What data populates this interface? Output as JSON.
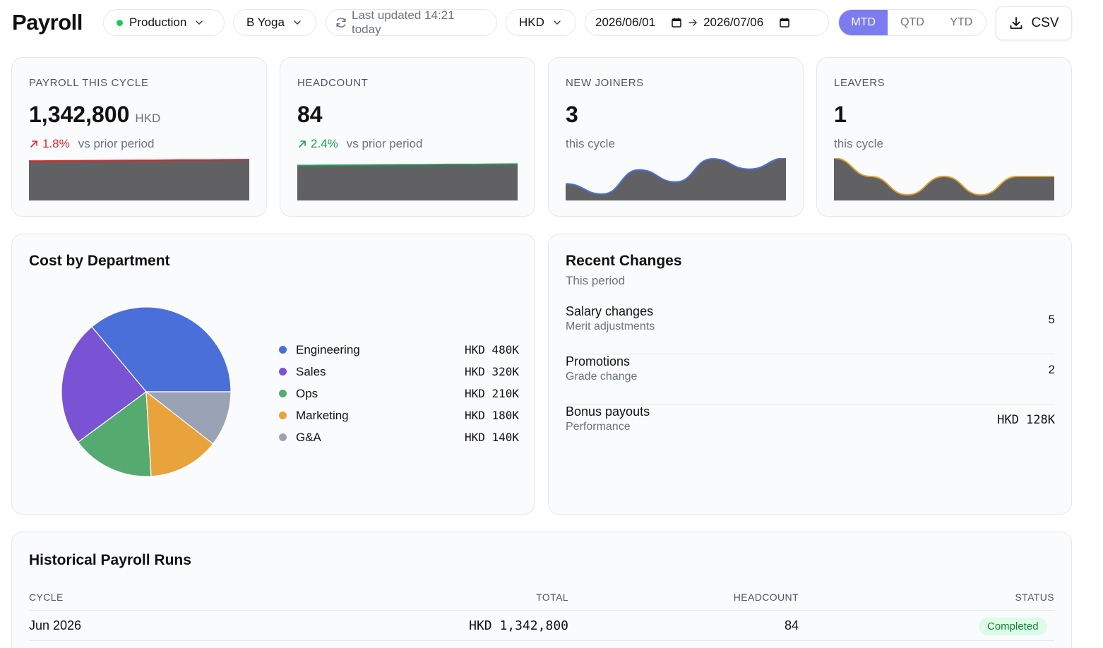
{
  "app": {
    "title": "Payroll"
  },
  "filters": {
    "environment": "Production",
    "company": "B Yoga",
    "last_updated": "Last updated 14:21 today",
    "currency": "HKD",
    "date_from": "2026/06/01",
    "date_to": "2026/07/06",
    "periods": [
      "MTD",
      "QTD",
      "YTD"
    ],
    "active_period": "MTD",
    "export_label": "CSV"
  },
  "colors": {
    "accent": "#7c7cf0",
    "env_dot": "#22c55e",
    "negative": "#dc2626",
    "positive": "#16a34a",
    "spark_fill": "#616163"
  },
  "kpis": [
    {
      "label": "PAYROLL THIS CYCLE",
      "value": "1,342,800",
      "unit": "HKD",
      "delta": "1.8%",
      "delta_note": "vs prior period",
      "trend_color": "#dc2626",
      "trend": [
        0.92,
        0.93,
        0.94,
        0.95,
        0.96
      ]
    },
    {
      "label": "HEADCOUNT",
      "value": "84",
      "unit": "",
      "delta": "2.4%",
      "delta_note": "vs prior period",
      "trend_color": "#22a055",
      "trend": [
        0.8,
        0.81,
        0.82,
        0.83,
        0.84
      ]
    },
    {
      "label": "NEW JOINERS",
      "value": "3",
      "unit": "",
      "note": "this cycle",
      "trend_color": "#4a6fe0",
      "trend": [
        0.3,
        0.02,
        0.68,
        0.35,
        0.98,
        0.7,
        1.0
      ]
    },
    {
      "label": "LEAVERS",
      "value": "1",
      "unit": "",
      "note": "this cycle",
      "trend_color": "#e0a030",
      "trend": [
        1.0,
        0.5,
        0.0,
        0.5,
        0.0,
        0.5,
        0.5
      ]
    }
  ],
  "department": {
    "title": "Cost by Department",
    "chart_data": {
      "type": "pie",
      "categories": [
        "Engineering",
        "Sales",
        "Ops",
        "Marketing",
        "G&A"
      ],
      "values": [
        480,
        320,
        210,
        180,
        140
      ],
      "labels": [
        "HKD 480K",
        "HKD 320K",
        "HKD 210K",
        "HKD 180K",
        "HKD 140K"
      ],
      "colors": [
        "#4a6fd8",
        "#7a52d4",
        "#55aa70",
        "#e8a33c",
        "#9aa3b5"
      ]
    }
  },
  "changes": {
    "title": "Recent Changes",
    "subtitle": "This period",
    "items": [
      {
        "title": "Salary changes",
        "desc": "Merit adjustments",
        "value": "5"
      },
      {
        "title": "Promotions",
        "desc": "Grade change",
        "value": "2"
      },
      {
        "title": "Bonus payouts",
        "desc": "Performance",
        "value": "HKD 128K"
      }
    ]
  },
  "history": {
    "title": "Historical Payroll Runs",
    "columns": [
      "CYCLE",
      "TOTAL",
      "HEADCOUNT",
      "STATUS"
    ],
    "rows": [
      {
        "cycle": "Jun 2026",
        "total": "HKD 1,342,800",
        "headcount": "84",
        "status": "Completed"
      }
    ]
  }
}
